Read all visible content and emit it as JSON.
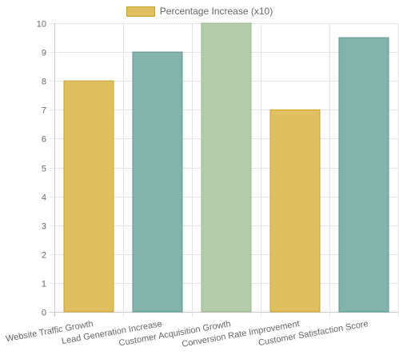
{
  "chart_data": {
    "type": "bar",
    "categories": [
      "Website Traffic Growth",
      "Lead Generation Increase",
      "Customer Acquisition Growth",
      "Conversion Rate Improvement",
      "Customer Satisfaction Score"
    ],
    "series": [
      {
        "name": "Percentage Increase (x10)",
        "values": [
          8,
          9,
          10,
          7,
          9.5
        ]
      }
    ],
    "bar_colors": [
      "#dfbf5f",
      "#84b3ac",
      "#b3cca7",
      "#dfbf5f",
      "#84b3ac"
    ],
    "bar_border_colors": [
      "#c9a227",
      "#5e958d",
      "#97b98a",
      "#c9a227",
      "#5e958d"
    ],
    "ylim": [
      0,
      10
    ],
    "yticks": [
      0,
      1,
      2,
      3,
      4,
      5,
      6,
      7,
      8,
      9,
      10
    ],
    "grid": true,
    "legend_position": "top",
    "xlabel": "",
    "ylabel": "",
    "title": ""
  }
}
